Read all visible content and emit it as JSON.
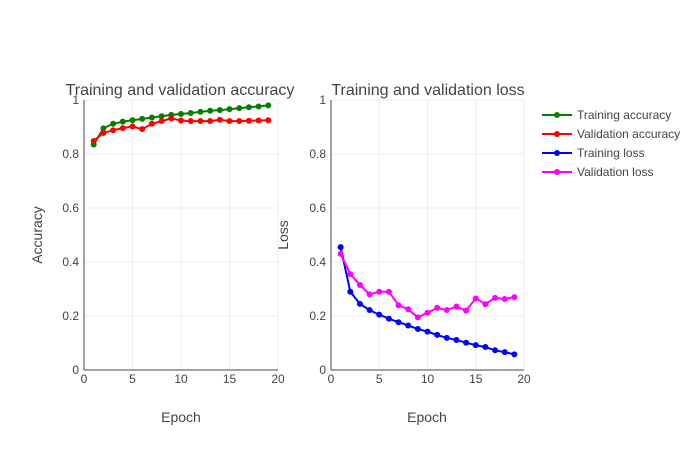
{
  "chart_data": [
    {
      "type": "line",
      "title": "Training and validation accuracy",
      "xlabel": "Epoch",
      "ylabel": "Accuracy",
      "xlim": [
        0,
        20
      ],
      "ylim": [
        0,
        1
      ],
      "xticks": [
        "0",
        "5",
        "10",
        "15",
        "20"
      ],
      "yticks": [
        "0",
        "0.2",
        "0.4",
        "0.6",
        "0.8",
        "1"
      ],
      "grid": true,
      "x": [
        1,
        2,
        3,
        4,
        5,
        6,
        7,
        8,
        9,
        10,
        11,
        12,
        13,
        14,
        15,
        16,
        17,
        18,
        19
      ],
      "series": [
        {
          "name": "Training accuracy",
          "color": "#008000",
          "values": [
            0.835,
            0.895,
            0.912,
            0.92,
            0.925,
            0.93,
            0.935,
            0.94,
            0.945,
            0.948,
            0.952,
            0.956,
            0.96,
            0.963,
            0.966,
            0.97,
            0.973,
            0.976,
            0.98
          ]
        },
        {
          "name": "Validation accuracy",
          "color": "#ff0000",
          "values": [
            0.848,
            0.878,
            0.888,
            0.896,
            0.902,
            0.892,
            0.912,
            0.922,
            0.932,
            0.924,
            0.922,
            0.922,
            0.922,
            0.927,
            0.922,
            0.922,
            0.923,
            0.924,
            0.925
          ]
        }
      ]
    },
    {
      "type": "line",
      "title": "Training and validation loss",
      "xlabel": "Epoch",
      "ylabel": "Loss",
      "xlim": [
        0,
        20
      ],
      "ylim": [
        0,
        1
      ],
      "xticks": [
        "0",
        "5",
        "10",
        "15",
        "20"
      ],
      "yticks": [
        "0",
        "0.2",
        "0.4",
        "0.6",
        "0.8",
        "1"
      ],
      "grid": true,
      "x": [
        1,
        2,
        3,
        4,
        5,
        6,
        7,
        8,
        9,
        10,
        11,
        12,
        13,
        14,
        15,
        16,
        17,
        18,
        19
      ],
      "series": [
        {
          "name": "Training loss",
          "color": "#0000ff",
          "values": [
            0.455,
            0.29,
            0.245,
            0.222,
            0.205,
            0.19,
            0.177,
            0.165,
            0.152,
            0.142,
            0.13,
            0.119,
            0.111,
            0.101,
            0.092,
            0.085,
            0.073,
            0.066,
            0.058
          ]
        },
        {
          "name": "Validation loss",
          "color": "#ff00ff",
          "values": [
            0.43,
            0.355,
            0.315,
            0.28,
            0.29,
            0.29,
            0.24,
            0.225,
            0.195,
            0.212,
            0.23,
            0.222,
            0.235,
            0.22,
            0.265,
            0.244,
            0.267,
            0.263,
            0.27
          ]
        }
      ]
    }
  ],
  "legend": {
    "placement": "right",
    "items": [
      {
        "label": "Training accuracy",
        "color": "#008000"
      },
      {
        "label": "Validation accuracy",
        "color": "#ff0000"
      },
      {
        "label": "Training loss",
        "color": "#0000ff"
      },
      {
        "label": "Validation loss",
        "color": "#ff00ff"
      }
    ]
  }
}
